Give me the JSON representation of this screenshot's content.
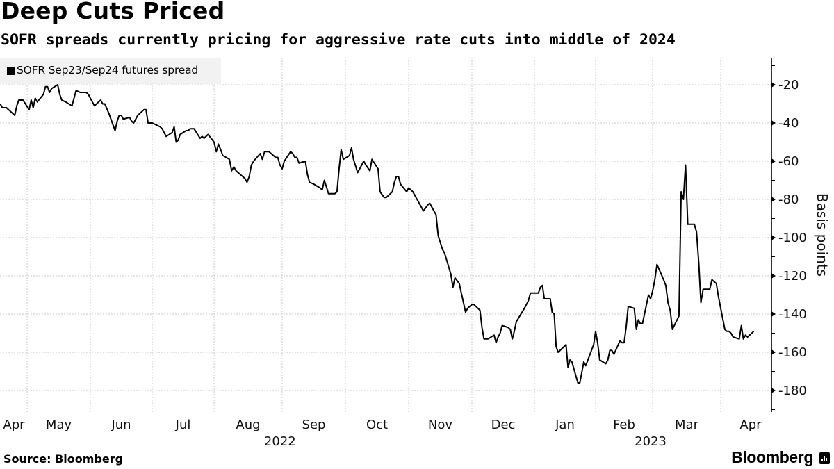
{
  "header": {
    "title": "Deep Cuts Priced",
    "subtitle": "SOFR spreads currently pricing for aggressive rate cuts into middle of 2024"
  },
  "footer": {
    "source": "Source: Bloomberg",
    "brand": "Bloomberg",
    "brand_icon": "bloomberg-chart-icon"
  },
  "chart_data": {
    "type": "line",
    "title": "Deep Cuts Priced",
    "subtitle": "SOFR spreads currently pricing for aggressive rate cuts into middle of 2024",
    "xlabel": "",
    "ylabel": "Basis points",
    "y_axis_side": "right",
    "ylim": [
      -192,
      -7
    ],
    "yticks": [
      -20,
      -40,
      -60,
      -80,
      -100,
      -120,
      -140,
      -160,
      -180
    ],
    "xticks": [
      {
        "label": "Apr",
        "date": "2022-04"
      },
      {
        "label": "May",
        "date": "2022-05"
      },
      {
        "label": "Jun",
        "date": "2022-06"
      },
      {
        "label": "Jul",
        "date": "2022-07"
      },
      {
        "label": "Aug",
        "date": "2022-08"
      },
      {
        "label": "Sep",
        "date": "2022-09"
      },
      {
        "label": "Oct",
        "date": "2022-10"
      },
      {
        "label": "Nov",
        "date": "2022-11"
      },
      {
        "label": "Dec",
        "date": "2022-12"
      },
      {
        "label": "Jan",
        "date": "2023-01"
      },
      {
        "label": "Feb",
        "date": "2023-02"
      },
      {
        "label": "Mar",
        "date": "2023-03"
      },
      {
        "label": "Apr",
        "date": "2023-04"
      }
    ],
    "year_labels": [
      {
        "label": "2022",
        "center_month": "2022-08-31"
      },
      {
        "label": "2023",
        "center_month": "2023-02-28"
      }
    ],
    "grid": true,
    "legend": {
      "position": "top-left",
      "entries": [
        "SOFR Sep23/Sep24 futures spread"
      ]
    },
    "series": [
      {
        "name": "SOFR Sep23/Sep24 futures spread",
        "color": "#000000",
        "points": [
          [
            "2022-04-18",
            -30
          ],
          [
            "2022-04-19",
            -32
          ],
          [
            "2022-04-21",
            -32
          ],
          [
            "2022-04-22",
            -33
          ],
          [
            "2022-04-25",
            -36
          ],
          [
            "2022-04-26",
            -31
          ],
          [
            "2022-04-27",
            -28
          ],
          [
            "2022-04-28",
            -28
          ],
          [
            "2022-04-29",
            -28
          ],
          [
            "2022-05-02",
            -33
          ],
          [
            "2022-05-03",
            -28
          ],
          [
            "2022-05-04",
            -32
          ],
          [
            "2022-05-05",
            -27
          ],
          [
            "2022-05-06",
            -29
          ],
          [
            "2022-05-09",
            -25
          ],
          [
            "2022-05-10",
            -21
          ],
          [
            "2022-05-11",
            -21
          ],
          [
            "2022-05-12",
            -24
          ],
          [
            "2022-05-13",
            -22
          ],
          [
            "2022-05-16",
            -20
          ],
          [
            "2022-05-17",
            -25
          ],
          [
            "2022-05-18",
            -28
          ],
          [
            "2022-05-20",
            -29
          ],
          [
            "2022-05-23",
            -31
          ],
          [
            "2022-05-25",
            -23
          ],
          [
            "2022-05-27",
            -24
          ],
          [
            "2022-05-30",
            -24
          ],
          [
            "2022-05-31",
            -25
          ],
          [
            "2022-06-02",
            -29
          ],
          [
            "2022-06-03",
            -31
          ],
          [
            "2022-06-06",
            -28
          ],
          [
            "2022-06-07",
            -30
          ],
          [
            "2022-06-08",
            -30
          ],
          [
            "2022-06-10",
            -35
          ],
          [
            "2022-06-13",
            -44
          ],
          [
            "2022-06-14",
            -39
          ],
          [
            "2022-06-15",
            -36
          ],
          [
            "2022-06-16",
            -36
          ],
          [
            "2022-06-17",
            -38
          ],
          [
            "2022-06-20",
            -37
          ],
          [
            "2022-06-21",
            -39
          ],
          [
            "2022-06-22",
            -40
          ],
          [
            "2022-06-24",
            -36
          ],
          [
            "2022-06-27",
            -33
          ],
          [
            "2022-06-28",
            -33
          ],
          [
            "2022-06-29",
            -40
          ],
          [
            "2022-07-01",
            -40
          ],
          [
            "2022-07-05",
            -42
          ],
          [
            "2022-07-06",
            -43
          ],
          [
            "2022-07-07",
            -45
          ],
          [
            "2022-07-08",
            -47
          ],
          [
            "2022-07-11",
            -45
          ],
          [
            "2022-07-12",
            -42
          ],
          [
            "2022-07-13",
            -50
          ],
          [
            "2022-07-14",
            -49
          ],
          [
            "2022-07-15",
            -46
          ],
          [
            "2022-07-18",
            -44
          ],
          [
            "2022-07-19",
            -44
          ],
          [
            "2022-07-20",
            -43
          ],
          [
            "2022-07-22",
            -43
          ],
          [
            "2022-07-25",
            -48
          ],
          [
            "2022-07-26",
            -47
          ],
          [
            "2022-07-27",
            -48
          ],
          [
            "2022-07-29",
            -46
          ],
          [
            "2022-08-01",
            -50
          ],
          [
            "2022-08-02",
            -55
          ],
          [
            "2022-08-03",
            -51
          ],
          [
            "2022-08-04",
            -54
          ],
          [
            "2022-08-05",
            -57
          ],
          [
            "2022-08-08",
            -59
          ],
          [
            "2022-08-09",
            -65
          ],
          [
            "2022-08-10",
            -63
          ],
          [
            "2022-08-11",
            -65
          ],
          [
            "2022-08-12",
            -66
          ],
          [
            "2022-08-15",
            -69
          ],
          [
            "2022-08-16",
            -71
          ],
          [
            "2022-08-17",
            -68
          ],
          [
            "2022-08-18",
            -62
          ],
          [
            "2022-08-19",
            -60
          ],
          [
            "2022-08-22",
            -56
          ],
          [
            "2022-08-23",
            -59
          ],
          [
            "2022-08-24",
            -55
          ],
          [
            "2022-08-26",
            -55
          ],
          [
            "2022-08-29",
            -58
          ],
          [
            "2022-08-30",
            -58
          ],
          [
            "2022-08-31",
            -62
          ],
          [
            "2022-09-01",
            -64
          ],
          [
            "2022-09-02",
            -60
          ],
          [
            "2022-09-05",
            -55
          ],
          [
            "2022-09-06",
            -56
          ],
          [
            "2022-09-07",
            -58
          ],
          [
            "2022-09-08",
            -58
          ],
          [
            "2022-09-09",
            -61
          ],
          [
            "2022-09-12",
            -60
          ],
          [
            "2022-09-13",
            -67
          ],
          [
            "2022-09-14",
            -71
          ],
          [
            "2022-09-16",
            -72
          ],
          [
            "2022-09-19",
            -74
          ],
          [
            "2022-09-20",
            -75
          ],
          [
            "2022-09-21",
            -70
          ],
          [
            "2022-09-23",
            -77
          ],
          [
            "2022-09-26",
            -77
          ],
          [
            "2022-09-27",
            -76
          ],
          [
            "2022-09-28",
            -64
          ],
          [
            "2022-09-29",
            -54
          ],
          [
            "2022-09-30",
            -59
          ],
          [
            "2022-10-03",
            -57
          ],
          [
            "2022-10-04",
            -53
          ],
          [
            "2022-10-05",
            -59
          ],
          [
            "2022-10-07",
            -66
          ],
          [
            "2022-10-10",
            -60
          ],
          [
            "2022-10-11",
            -62
          ],
          [
            "2022-10-13",
            -65
          ],
          [
            "2022-10-14",
            -59
          ],
          [
            "2022-10-17",
            -64
          ],
          [
            "2022-10-18",
            -76
          ],
          [
            "2022-10-20",
            -79
          ],
          [
            "2022-10-21",
            -79
          ],
          [
            "2022-10-24",
            -76
          ],
          [
            "2022-10-25",
            -71
          ],
          [
            "2022-10-26",
            -68
          ],
          [
            "2022-10-27",
            -68
          ],
          [
            "2022-10-28",
            -72
          ],
          [
            "2022-10-31",
            -76
          ],
          [
            "2022-11-01",
            -74
          ],
          [
            "2022-11-03",
            -76
          ],
          [
            "2022-11-04",
            -78
          ],
          [
            "2022-11-07",
            -84
          ],
          [
            "2022-11-08",
            -86
          ],
          [
            "2022-11-10",
            -83
          ],
          [
            "2022-11-11",
            -82
          ],
          [
            "2022-11-14",
            -88
          ],
          [
            "2022-11-15",
            -99
          ],
          [
            "2022-11-17",
            -106
          ],
          [
            "2022-11-18",
            -108
          ],
          [
            "2022-11-21",
            -119
          ],
          [
            "2022-11-22",
            -126
          ],
          [
            "2022-11-23",
            -121
          ],
          [
            "2022-11-25",
            -124
          ],
          [
            "2022-11-28",
            -139
          ],
          [
            "2022-11-29",
            -137
          ],
          [
            "2022-12-01",
            -135
          ],
          [
            "2022-12-02",
            -135
          ],
          [
            "2022-12-05",
            -138
          ],
          [
            "2022-12-06",
            -147
          ],
          [
            "2022-12-07",
            -153
          ],
          [
            "2022-12-09",
            -153
          ],
          [
            "2022-12-12",
            -151
          ],
          [
            "2022-12-13",
            -155
          ],
          [
            "2022-12-14",
            -152
          ],
          [
            "2022-12-15",
            -150
          ],
          [
            "2022-12-16",
            -146
          ],
          [
            "2022-12-19",
            -147
          ],
          [
            "2022-12-20",
            -148
          ],
          [
            "2022-12-21",
            -153
          ],
          [
            "2022-12-22",
            -149
          ],
          [
            "2022-12-23",
            -144
          ],
          [
            "2022-12-27",
            -137
          ],
          [
            "2022-12-28",
            -135
          ],
          [
            "2022-12-29",
            -133
          ],
          [
            "2022-12-30",
            -129
          ],
          [
            "2023-01-03",
            -129
          ],
          [
            "2023-01-04",
            -126
          ],
          [
            "2023-01-05",
            -125
          ],
          [
            "2023-01-06",
            -132
          ],
          [
            "2023-01-09",
            -132
          ],
          [
            "2023-01-10",
            -139
          ],
          [
            "2023-01-11",
            -140
          ],
          [
            "2023-01-12",
            -157
          ],
          [
            "2023-01-13",
            -160
          ],
          [
            "2023-01-17",
            -156
          ],
          [
            "2023-01-18",
            -168
          ],
          [
            "2023-01-19",
            -164
          ],
          [
            "2023-01-20",
            -165
          ],
          [
            "2023-01-23",
            -176
          ],
          [
            "2023-01-24",
            -176
          ],
          [
            "2023-01-26",
            -165
          ],
          [
            "2023-01-27",
            -167
          ],
          [
            "2023-01-31",
            -156
          ],
          [
            "2023-02-01",
            -149
          ],
          [
            "2023-02-02",
            -155
          ],
          [
            "2023-02-03",
            -164
          ],
          [
            "2023-02-06",
            -166
          ],
          [
            "2023-02-07",
            -164
          ],
          [
            "2023-02-08",
            -159
          ],
          [
            "2023-02-09",
            -159
          ],
          [
            "2023-02-10",
            -161
          ],
          [
            "2023-02-13",
            -154
          ],
          [
            "2023-02-14",
            -155
          ],
          [
            "2023-02-15",
            -155
          ],
          [
            "2023-02-16",
            -147
          ],
          [
            "2023-02-17",
            -136
          ],
          [
            "2023-02-20",
            -137
          ],
          [
            "2023-02-21",
            -148
          ],
          [
            "2023-02-22",
            -143
          ],
          [
            "2023-02-23",
            -145
          ],
          [
            "2023-02-24",
            -145
          ],
          [
            "2023-02-27",
            -130
          ],
          [
            "2023-02-28",
            -132
          ],
          [
            "2023-03-01",
            -128
          ],
          [
            "2023-03-02",
            -122
          ],
          [
            "2023-03-03",
            -114
          ],
          [
            "2023-03-06",
            -122
          ],
          [
            "2023-03-07",
            -125
          ],
          [
            "2023-03-08",
            -134
          ],
          [
            "2023-03-09",
            -138
          ],
          [
            "2023-03-10",
            -148
          ],
          [
            "2023-03-13",
            -141
          ],
          [
            "2023-03-14",
            -76
          ],
          [
            "2023-03-15",
            -80
          ],
          [
            "2023-03-16",
            -62
          ],
          [
            "2023-03-17",
            -93
          ],
          [
            "2023-03-20",
            -93
          ],
          [
            "2023-03-21",
            -97
          ],
          [
            "2023-03-22",
            -113
          ],
          [
            "2023-03-23",
            -134
          ],
          [
            "2023-03-24",
            -127
          ],
          [
            "2023-03-27",
            -127
          ],
          [
            "2023-03-28",
            -122
          ],
          [
            "2023-03-29",
            -123
          ],
          [
            "2023-03-30",
            -124
          ],
          [
            "2023-03-31",
            -131
          ],
          [
            "2023-04-03",
            -148
          ],
          [
            "2023-04-04",
            -149
          ],
          [
            "2023-04-05",
            -149
          ],
          [
            "2023-04-06",
            -150
          ],
          [
            "2023-04-07",
            -152
          ],
          [
            "2023-04-10",
            -153
          ],
          [
            "2023-04-11",
            -146
          ],
          [
            "2023-04-12",
            -153
          ],
          [
            "2023-04-13",
            -151
          ],
          [
            "2023-04-14",
            -152
          ],
          [
            "2023-04-17",
            -149
          ]
        ]
      }
    ]
  }
}
